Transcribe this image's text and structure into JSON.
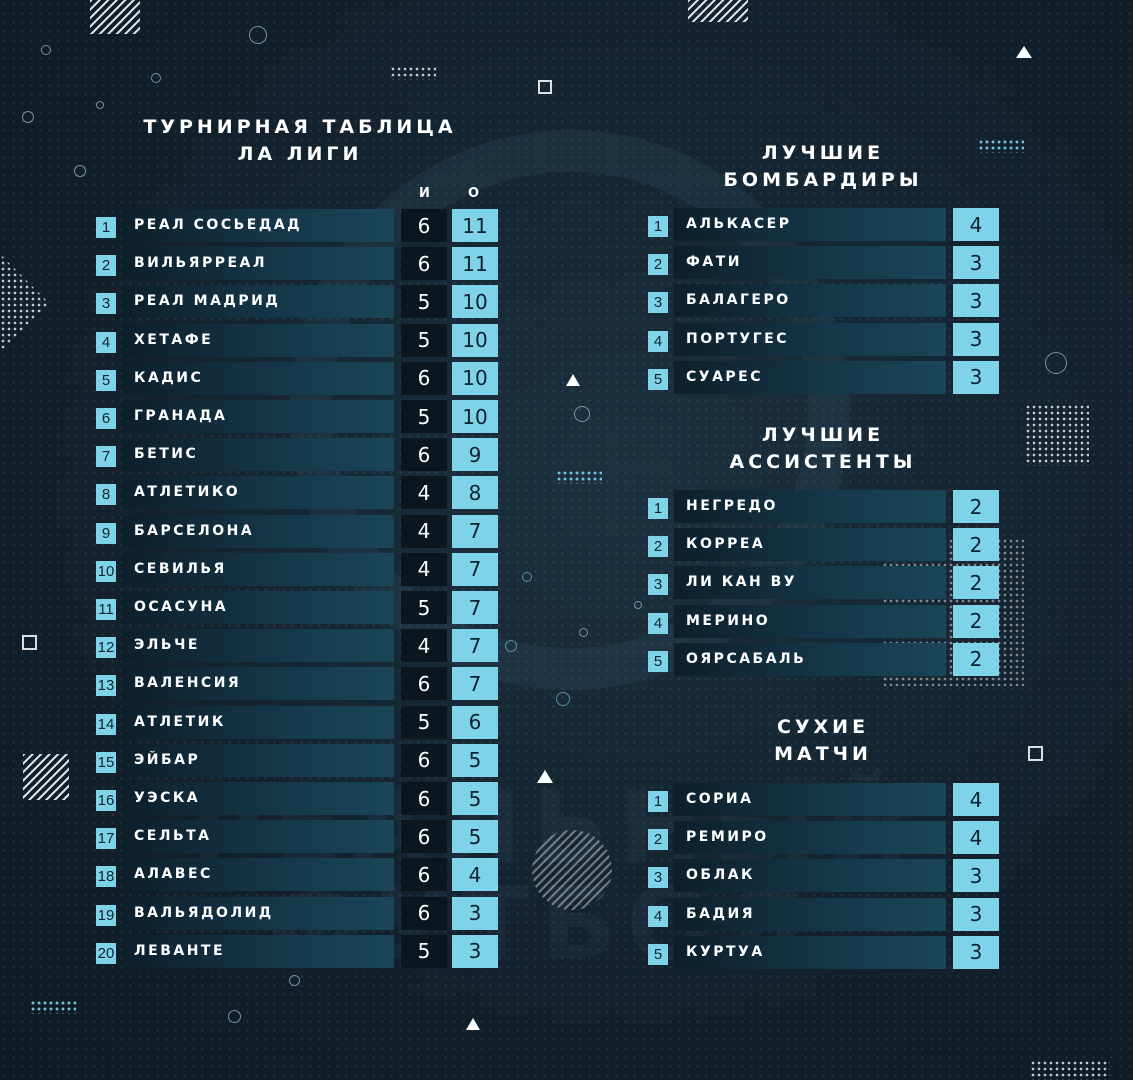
{
  "league": {
    "title_line1": "ТУРНИРНАЯ ТАБЛИЦА",
    "title_line2": "ЛА ЛИГИ",
    "col_games": "И",
    "col_points": "О",
    "rows": [
      {
        "pos": "1",
        "team": "РЕАЛ СОСЬЕДАД",
        "games": "6",
        "points": "11"
      },
      {
        "pos": "2",
        "team": "ВИЛЬЯРРЕАЛ",
        "games": "6",
        "points": "11"
      },
      {
        "pos": "3",
        "team": "РЕАЛ МАДРИД",
        "games": "5",
        "points": "10"
      },
      {
        "pos": "4",
        "team": "ХЕТАФЕ",
        "games": "5",
        "points": "10"
      },
      {
        "pos": "5",
        "team": "КАДИС",
        "games": "6",
        "points": "10"
      },
      {
        "pos": "6",
        "team": "ГРАНАДА",
        "games": "5",
        "points": "10"
      },
      {
        "pos": "7",
        "team": "БЕТИС",
        "games": "6",
        "points": "9"
      },
      {
        "pos": "8",
        "team": "АТЛЕТИКО",
        "games": "4",
        "points": "8"
      },
      {
        "pos": "9",
        "team": "БАРСЕЛОНА",
        "games": "4",
        "points": "7"
      },
      {
        "pos": "10",
        "team": "СЕВИЛЬЯ",
        "games": "4",
        "points": "7"
      },
      {
        "pos": "11",
        "team": "ОСАСУНА",
        "games": "5",
        "points": "7"
      },
      {
        "pos": "12",
        "team": "ЭЛЬЧЕ",
        "games": "4",
        "points": "7"
      },
      {
        "pos": "13",
        "team": "ВАЛЕНСИЯ",
        "games": "6",
        "points": "7"
      },
      {
        "pos": "14",
        "team": "АТЛЕТИК",
        "games": "5",
        "points": "6"
      },
      {
        "pos": "15",
        "team": "ЭЙБАР",
        "games": "6",
        "points": "5"
      },
      {
        "pos": "16",
        "team": "УЭСКА",
        "games": "6",
        "points": "5"
      },
      {
        "pos": "17",
        "team": "СЕЛЬТА",
        "games": "6",
        "points": "5"
      },
      {
        "pos": "18",
        "team": "АЛАВЕС",
        "games": "6",
        "points": "4"
      },
      {
        "pos": "19",
        "team": "ВАЛЬЯДОЛИД",
        "games": "6",
        "points": "3"
      },
      {
        "pos": "20",
        "team": "ЛЕВАНТЕ",
        "games": "5",
        "points": "3"
      }
    ]
  },
  "scorers": {
    "title_line1": "ЛУЧШИЕ",
    "title_line2": "БОМБАРДИРЫ",
    "rows": [
      {
        "pos": "1",
        "name": "АЛЬКАСЕР",
        "value": "4"
      },
      {
        "pos": "2",
        "name": "ФАТИ",
        "value": "3"
      },
      {
        "pos": "3",
        "name": "БАЛАГЕРО",
        "value": "3"
      },
      {
        "pos": "4",
        "name": "ПОРТУГЕС",
        "value": "3"
      },
      {
        "pos": "5",
        "name": "СУАРЕС",
        "value": "3"
      }
    ]
  },
  "assists": {
    "title_line1": "ЛУЧШИЕ",
    "title_line2": "АССИСТЕНТЫ",
    "rows": [
      {
        "pos": "1",
        "name": "НЕГРЕДО",
        "value": "2"
      },
      {
        "pos": "2",
        "name": "КОРРЕА",
        "value": "2"
      },
      {
        "pos": "3",
        "name": "ЛИ КАН ВУ",
        "value": "2"
      },
      {
        "pos": "4",
        "name": "МЕРИНО",
        "value": "2"
      },
      {
        "pos": "5",
        "name": "ОЯРСАБАЛЬ",
        "value": "2"
      }
    ]
  },
  "clean_sheets": {
    "title_line1": "СУХИЕ",
    "title_line2": "МАТЧИ",
    "rows": [
      {
        "pos": "1",
        "name": "СОРИА",
        "value": "4"
      },
      {
        "pos": "2",
        "name": "РЕМИРО",
        "value": "4"
      },
      {
        "pos": "3",
        "name": "ОБЛАК",
        "value": "3"
      },
      {
        "pos": "4",
        "name": "БАДИЯ",
        "value": "3"
      },
      {
        "pos": "5",
        "name": "КУРТУА",
        "value": "3"
      }
    ]
  },
  "colors": {
    "accent": "#7fd3e8",
    "background": "#13222e",
    "games_box": "#0b161e"
  }
}
